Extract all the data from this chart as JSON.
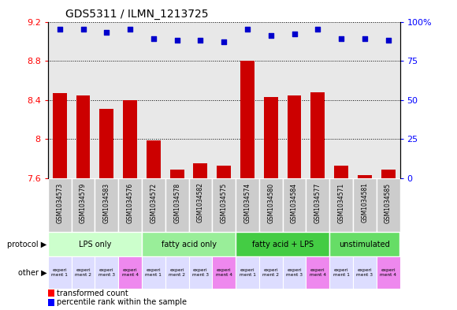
{
  "title": "GDS5311 / ILMN_1213725",
  "samples": [
    "GSM1034573",
    "GSM1034579",
    "GSM1034583",
    "GSM1034576",
    "GSM1034572",
    "GSM1034578",
    "GSM1034582",
    "GSM1034575",
    "GSM1034574",
    "GSM1034580",
    "GSM1034584",
    "GSM1034577",
    "GSM1034571",
    "GSM1034581",
    "GSM1034585"
  ],
  "transformed_count": [
    8.47,
    8.45,
    8.31,
    8.4,
    7.99,
    7.69,
    7.75,
    7.73,
    8.8,
    8.43,
    8.45,
    8.48,
    7.73,
    7.63,
    7.69
  ],
  "percentile_rank": [
    95,
    95,
    93,
    95,
    89,
    88,
    88,
    87,
    95,
    91,
    92,
    95,
    89,
    89,
    88
  ],
  "ylim_left": [
    7.6,
    9.2
  ],
  "ylim_right": [
    0,
    100
  ],
  "yticks_left": [
    7.6,
    8.0,
    8.4,
    8.8,
    9.2
  ],
  "ytick_labels_left": [
    "7.6",
    "8",
    "8.4",
    "8.8",
    "9.2"
  ],
  "yticks_right": [
    0,
    25,
    50,
    75,
    100
  ],
  "ytick_labels_right": [
    "0",
    "25",
    "50",
    "75",
    "100%"
  ],
  "protocol_groups": [
    {
      "label": "LPS only",
      "start": 0,
      "end": 3,
      "color": "#ccffcc"
    },
    {
      "label": "fatty acid only",
      "start": 4,
      "end": 7,
      "color": "#99ee99"
    },
    {
      "label": "fatty acid + LPS",
      "start": 8,
      "end": 11,
      "color": "#44cc44"
    },
    {
      "label": "unstimulated",
      "start": 12,
      "end": 14,
      "color": "#66dd66"
    }
  ],
  "other_colors": [
    "#ddddff",
    "#ddddff",
    "#ddddff",
    "#ee88ee",
    "#ddddff",
    "#ddddff",
    "#ddddff",
    "#ee88ee",
    "#ddddff",
    "#ddddff",
    "#ddddff",
    "#ee88ee",
    "#ddddff",
    "#ddddff",
    "#ee88ee"
  ],
  "other_labels": [
    "experi\nment 1",
    "experi\nment 2",
    "experi\nment 3",
    "experi\nment 4",
    "experi\nment 1",
    "experi\nment 2",
    "experi\nment 3",
    "experi\nment 4",
    "experi\nment 1",
    "experi\nment 2",
    "experi\nment 3",
    "experi\nment 4",
    "experi\nment 1",
    "experi\nment 3",
    "experi\nment 4"
  ],
  "bar_color": "#cc0000",
  "dot_color": "#0000cc",
  "bar_width": 0.6,
  "sample_cell_color": "#cccccc",
  "background_color": "#e8e8e8",
  "legend_red": "transformed count",
  "legend_blue": "percentile rank within the sample"
}
